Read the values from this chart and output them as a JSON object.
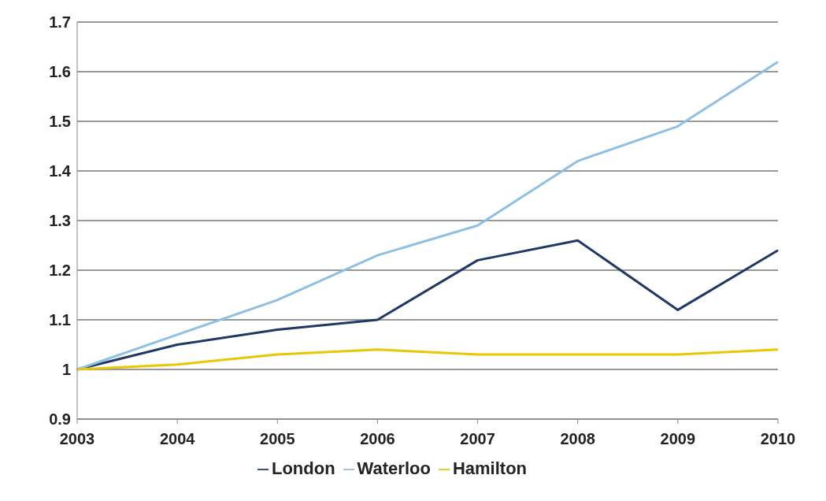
{
  "chart_data": {
    "type": "line",
    "categories": [
      "2003",
      "2004",
      "2005",
      "2006",
      "2007",
      "2008",
      "2009",
      "2010"
    ],
    "series": [
      {
        "name": "London",
        "color": "#1f3864",
        "values": [
          1.0,
          1.05,
          1.08,
          1.1,
          1.22,
          1.26,
          1.12,
          1.24
        ]
      },
      {
        "name": "Waterloo",
        "color": "#8ec0e4",
        "values": [
          1.0,
          1.07,
          1.14,
          1.23,
          1.29,
          1.42,
          1.49,
          1.62
        ]
      },
      {
        "name": "Hamilton",
        "color": "#e8c800",
        "values": [
          1.0,
          1.01,
          1.03,
          1.04,
          1.03,
          1.03,
          1.03,
          1.04
        ]
      }
    ],
    "ylim": [
      0.9,
      1.7
    ],
    "yticks": [
      0.9,
      1,
      1.1,
      1.2,
      1.3,
      1.4,
      1.5,
      1.6,
      1.7
    ],
    "grid": "y",
    "legend": "bottom",
    "marker": "none",
    "line_style": "solid"
  }
}
